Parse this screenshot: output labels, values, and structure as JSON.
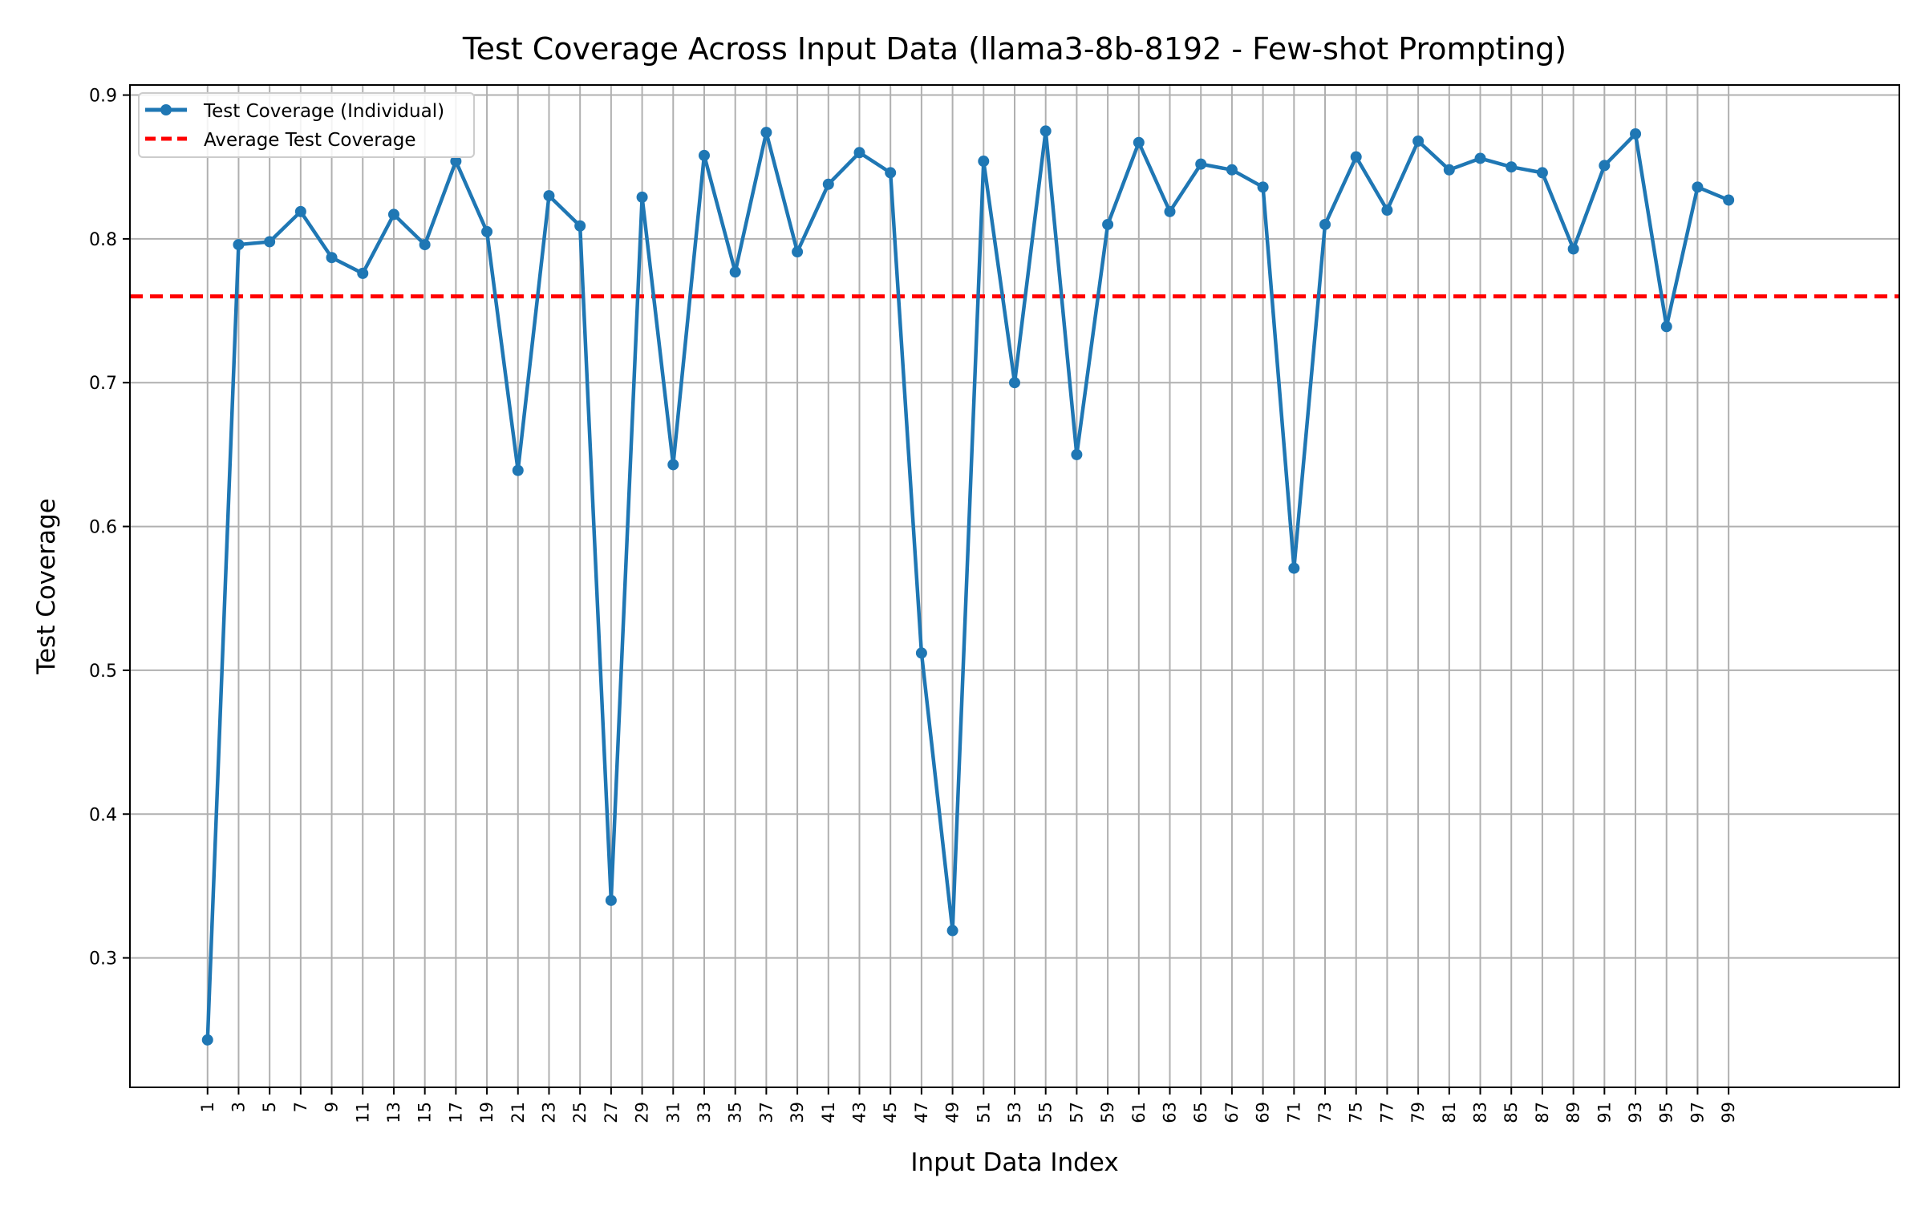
{
  "chart_data": {
    "type": "line",
    "title": "Test Coverage Across Input Data (llama3-8b-8192 - Few-shot Prompting)",
    "xlabel": "Input Data Index",
    "ylabel": "Test Coverage",
    "xlim": [
      -4,
      110
    ],
    "ylim": [
      0.21,
      0.907
    ],
    "xticks": [
      1,
      3,
      5,
      7,
      9,
      11,
      13,
      15,
      17,
      19,
      21,
      23,
      25,
      27,
      29,
      31,
      33,
      35,
      37,
      39,
      41,
      43,
      45,
      47,
      49,
      51,
      53,
      55,
      57,
      59,
      61,
      63,
      65,
      67,
      69,
      71,
      73,
      75,
      77,
      79,
      81,
      83,
      85,
      87,
      89,
      91,
      93,
      95,
      97,
      99
    ],
    "xtick_labels": [
      "1",
      "3",
      "5",
      "7",
      "9",
      "11",
      "13",
      "15",
      "17",
      "19",
      "21",
      "23",
      "25",
      "27",
      "29",
      "31",
      "33",
      "35",
      "37",
      "39",
      "41",
      "43",
      "45",
      "47",
      "49",
      "51",
      "53",
      "55",
      "57",
      "59",
      "61",
      "63",
      "65",
      "67",
      "69",
      "71",
      "73",
      "75",
      "77",
      "79",
      "81",
      "83",
      "85",
      "87",
      "89",
      "91",
      "93",
      "95",
      "97",
      "99"
    ],
    "yticks": [
      0.3,
      0.4,
      0.5,
      0.6,
      0.7,
      0.8,
      0.9
    ],
    "ytick_labels": [
      "0.3",
      "0.4",
      "0.5",
      "0.6",
      "0.7",
      "0.8",
      "0.9"
    ],
    "grid": true,
    "legend_position": "top-left",
    "series": [
      {
        "name": "Test Coverage (Individual)",
        "style": "solid-line-with-markers",
        "color": "#1f77b4",
        "x": [
          1,
          3,
          5,
          7,
          9,
          11,
          13,
          15,
          17,
          19,
          21,
          23,
          25,
          27,
          29,
          31,
          33,
          35,
          37,
          39,
          41,
          43,
          45,
          47,
          49,
          51,
          53,
          55,
          57,
          59,
          61,
          63,
          65,
          67,
          69,
          71,
          73,
          75,
          77,
          79,
          81,
          83,
          85,
          87,
          89,
          91,
          93,
          95,
          97,
          99
        ],
        "y": [
          0.243,
          0.796,
          0.798,
          0.819,
          0.787,
          0.776,
          0.817,
          0.796,
          0.854,
          0.805,
          0.639,
          0.83,
          0.809,
          0.34,
          0.829,
          0.643,
          0.858,
          0.777,
          0.874,
          0.791,
          0.838,
          0.86,
          0.846,
          0.512,
          0.319,
          0.854,
          0.7,
          0.875,
          0.65,
          0.81,
          0.867,
          0.819,
          0.852,
          0.848,
          0.836,
          0.571,
          0.81,
          0.857,
          0.82,
          0.868,
          0.848,
          0.856,
          0.85,
          0.846,
          0.793,
          0.851,
          0.873,
          0.739,
          0.836,
          0.827
        ]
      },
      {
        "name": "Average Test Coverage",
        "style": "dashed-horizontal-line",
        "color": "#ff0000",
        "y": 0.76
      }
    ]
  }
}
